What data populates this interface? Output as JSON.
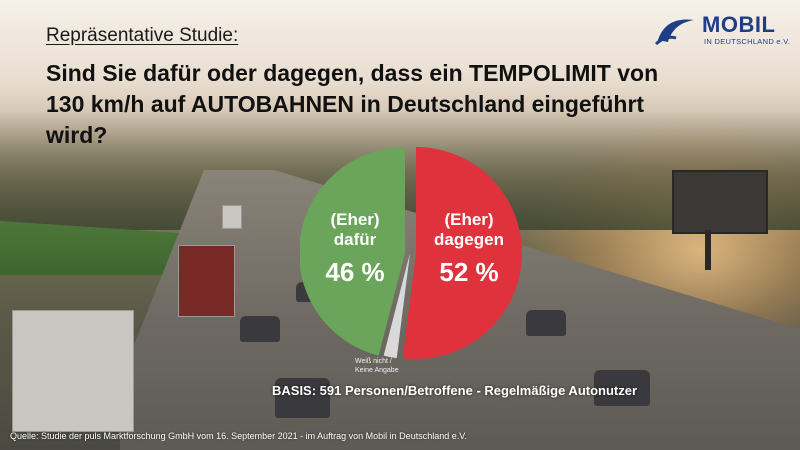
{
  "header": {
    "label": "Repräsentative Studie:",
    "question_line1": "Sind Sie dafür oder dagegen, dass ein TEMPOLIMIT von",
    "question_line2": "130 km/h auf AUTOBAHNEN in Deutschland eingeführt wird?"
  },
  "logo": {
    "name": "MOBIL",
    "subtitle": "IN DEUTSCHLAND e.V.",
    "color": "#1e3f86"
  },
  "chart_data": {
    "type": "pie",
    "slices": [
      {
        "label": "(Eher) dafür",
        "label_line1": "(Eher)",
        "label_line2": "dafür",
        "value": 46,
        "display": "46 %",
        "color": "#6aa55b"
      },
      {
        "label": "(Eher) dagegen",
        "label_line1": "(Eher)",
        "label_line2": "dagegen",
        "value": 52,
        "display": "52 %",
        "color": "#e0323c"
      },
      {
        "label": "Weiß nicht / Keine Angabe",
        "label_line1": "Weiß nicht /",
        "label_line2": "Keine Angabe",
        "value": 2,
        "display": "",
        "color": "#d9d9d9"
      }
    ]
  },
  "basis": "BASIS: 591 Personen/Betroffene - Regelmäßige Autonutzer",
  "source": "Quelle: Studie der puls Marktforschung GmbH vom 16. September 2021 - im Auftrag von Mobil in Deutschland e.V."
}
